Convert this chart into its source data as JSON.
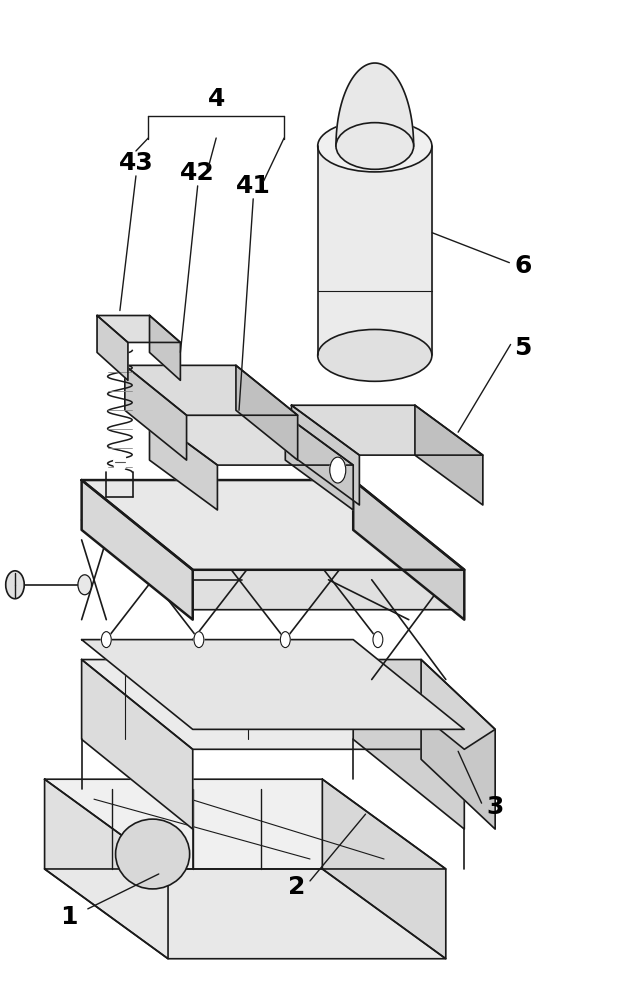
{
  "bg_color": "#ffffff",
  "line_color": "#1a1a1a",
  "label_color": "#000000",
  "figure_width": 6.2,
  "figure_height": 10.0,
  "label_fontsize": 18
}
